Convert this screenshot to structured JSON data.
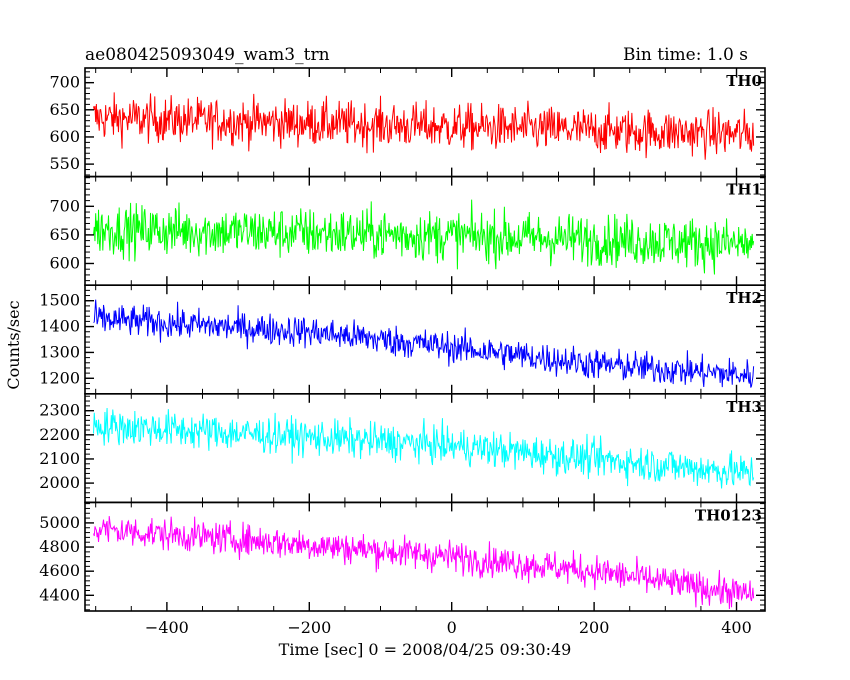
{
  "chart_data": {
    "type": "line",
    "title": "ae080425093049_wam3_trn",
    "subtitle": "Bin time: 1.0 s",
    "xlabel": "Time [sec] 0 = 2008/04/25 09:30:49",
    "ylabel": "Counts/sec",
    "xlim": [
      -515,
      440
    ],
    "x_ticks": [
      -400,
      -200,
      0,
      200,
      400
    ],
    "x_range": [
      -503,
      424
    ],
    "bin_time_s": 1.0,
    "panels": [
      {
        "name": "TH0",
        "color": "#ff0000",
        "ylim": [
          527,
          727
        ],
        "y_ticks": [
          550,
          600,
          650,
          700
        ],
        "trend": [
          [
            -503,
            635
          ],
          [
            -100,
            622
          ],
          [
            200,
            612
          ],
          [
            424,
            605
          ]
        ],
        "noise_amp": 38
      },
      {
        "name": "TH1",
        "color": "#00ff00",
        "ylim": [
          562,
          752
        ],
        "y_ticks": [
          600,
          650,
          700
        ],
        "trend": [
          [
            -503,
            660
          ],
          [
            -100,
            651
          ],
          [
            200,
            642
          ],
          [
            424,
            633
          ]
        ],
        "noise_amp": 40
      },
      {
        "name": "TH2",
        "color": "#0000ff",
        "ylim": [
          1140,
          1560
        ],
        "y_ticks": [
          1200,
          1300,
          1400,
          1500
        ],
        "trend": [
          [
            -503,
            1430
          ],
          [
            -200,
            1380
          ],
          [
            0,
            1320
          ],
          [
            200,
            1255
          ],
          [
            424,
            1210
          ]
        ],
        "noise_amp": 55
      },
      {
        "name": "TH3",
        "color": "#00ffff",
        "ylim": [
          1920,
          2370
        ],
        "y_ticks": [
          2000,
          2100,
          2200,
          2300
        ],
        "trend": [
          [
            -503,
            2240
          ],
          [
            -200,
            2190
          ],
          [
            0,
            2155
          ],
          [
            200,
            2100
          ],
          [
            424,
            2040
          ]
        ],
        "noise_amp": 68
      },
      {
        "name": "TH0123",
        "color": "#ff00ff",
        "ylim": [
          4270,
          5170
        ],
        "y_ticks": [
          4400,
          4600,
          4800,
          5000
        ],
        "trend": [
          [
            -503,
            4950
          ],
          [
            -200,
            4820
          ],
          [
            0,
            4720
          ],
          [
            200,
            4600
          ],
          [
            424,
            4400
          ]
        ],
        "noise_amp": 120
      }
    ]
  }
}
